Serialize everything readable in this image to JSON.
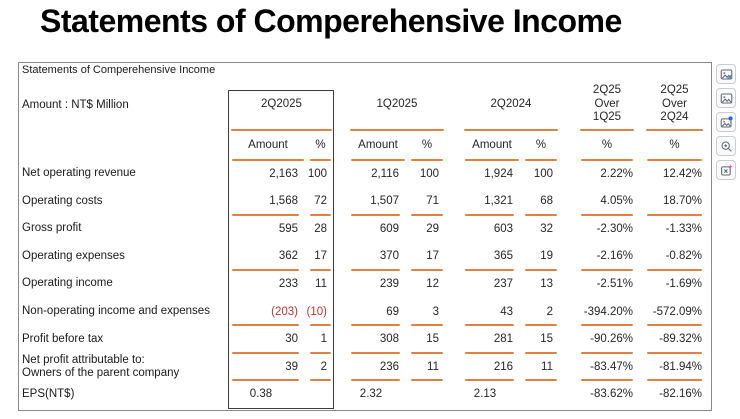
{
  "title": "Statements of Comperehensive Income",
  "table": {
    "caption": "Statements of Comperehensive Income",
    "unit_label": "Amount : NT$ Million",
    "period_headers": [
      "2Q2025",
      "1Q2025",
      "2Q2024",
      "2Q25\nOver\n1Q25",
      "2Q25\nOver\n2Q24"
    ],
    "sub_headers": [
      "Amount",
      "%",
      "Amount",
      "%",
      "Amount",
      "%",
      "%",
      "%"
    ],
    "rows": [
      {
        "label": "Net operating revenue",
        "cells": [
          "2,163",
          "100",
          "2,116",
          "100",
          "1,924",
          "100",
          "2.22%",
          "12.42%"
        ],
        "line_below": false
      },
      {
        "label": "Operating costs",
        "cells": [
          "1,568",
          "72",
          "1,507",
          "71",
          "1,321",
          "68",
          "4.05%",
          "18.70%"
        ],
        "line_below": true
      },
      {
        "label": "Gross profit",
        "cells": [
          "595",
          "28",
          "609",
          "29",
          "603",
          "32",
          "-2.30%",
          "-1.33%"
        ],
        "line_below": false
      },
      {
        "label": "Operating expenses",
        "cells": [
          "362",
          "17",
          "370",
          "17",
          "365",
          "19",
          "-2.16%",
          "-0.82%"
        ],
        "line_below": true
      },
      {
        "label": "Operating income",
        "cells": [
          "233",
          "11",
          "239",
          "12",
          "237",
          "13",
          "-2.51%",
          "-1.69%"
        ],
        "line_below": false
      },
      {
        "label": "Non-operating income and expenses",
        "cells": [
          "(203)",
          "(10)",
          "69",
          "3",
          "43",
          "2",
          "-394.20%",
          "-572.09%"
        ],
        "red_cells": [
          0,
          1
        ],
        "line_below": true
      },
      {
        "label": "Profit before tax",
        "cells": [
          "30",
          "1",
          "308",
          "15",
          "281",
          "15",
          "-90.26%",
          "-89.32%"
        ],
        "line_below": true
      },
      {
        "label": "Net profit attributable to:\nOwners of the parent company",
        "cells": [
          "39",
          "2",
          "236",
          "11",
          "216",
          "11",
          "-83.47%",
          "-81.94%"
        ],
        "line_below": true
      },
      {
        "label": "EPS(NT$)",
        "cells": [
          "0.38",
          "",
          "2.32",
          "",
          "2.13",
          "",
          "-83.62%",
          "-82.16%"
        ],
        "eps": true,
        "line_below": false
      }
    ]
  },
  "side_toolbar": {
    "icons": [
      "edit-image-icon",
      "image-icon",
      "visual-search-icon",
      "zoom-in-icon",
      "image-extract-icon"
    ]
  },
  "colors": {
    "accent_orange": "#DE8244",
    "negative_red": "#C13531",
    "column_box_border": "#3D3D3D"
  }
}
